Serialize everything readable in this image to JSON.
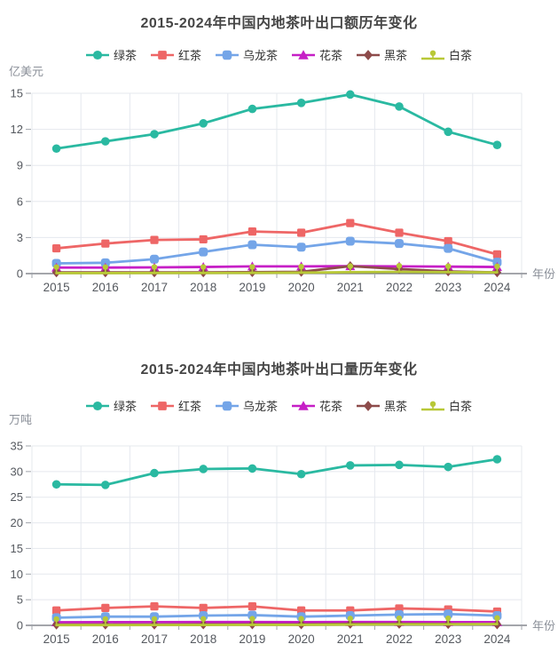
{
  "page": {
    "background": "#ffffff",
    "title_color": "#464646"
  },
  "style": {
    "grid_color": "#e5e8ee",
    "axis_line_color": "#6e7079",
    "tick_color": "#a0a4ab",
    "tick_label_color": "#55595f",
    "axis_name_color": "#8b9099",
    "legend_text_color": "#333333"
  },
  "chart_data": [
    {
      "type": "line",
      "title": "2015-2024年中国内地茶叶出口额历年变化",
      "y_name": "亿美元",
      "x_name": "年份",
      "categories": [
        "2015",
        "2016",
        "2017",
        "2018",
        "2019",
        "2020",
        "2021",
        "2022",
        "2023",
        "2024"
      ],
      "ylim": [
        0,
        15
      ],
      "ytick_step": 3,
      "grid": true,
      "legend_position": "top",
      "series": [
        {
          "key": "green-tea",
          "name": "绿茶",
          "color": "#2ab9a1",
          "symbol": "circle",
          "values": [
            10.4,
            11.0,
            11.6,
            12.5,
            13.7,
            14.2,
            14.9,
            13.9,
            11.8,
            10.7
          ]
        },
        {
          "key": "black-tea",
          "name": "红茶",
          "color": "#ee6666",
          "symbol": "rect",
          "values": [
            2.1,
            2.5,
            2.8,
            2.85,
            3.5,
            3.4,
            4.2,
            3.4,
            2.7,
            1.6
          ]
        },
        {
          "key": "oolong-tea",
          "name": "乌龙茶",
          "color": "#74a5e8",
          "symbol": "roundRect",
          "values": [
            0.85,
            0.9,
            1.2,
            1.8,
            2.4,
            2.2,
            2.7,
            2.5,
            2.1,
            0.95
          ]
        },
        {
          "key": "flower-tea",
          "name": "花茶",
          "color": "#c61fc6",
          "symbol": "triangle",
          "values": [
            0.5,
            0.5,
            0.52,
            0.55,
            0.6,
            0.6,
            0.62,
            0.6,
            0.58,
            0.55
          ]
        },
        {
          "key": "dark-tea",
          "name": "黑茶",
          "color": "#8d4b4a",
          "symbol": "diamond",
          "values": [
            0.1,
            0.1,
            0.1,
            0.1,
            0.12,
            0.15,
            0.62,
            0.38,
            0.18,
            0.1
          ]
        },
        {
          "key": "white-tea",
          "name": "白茶",
          "color": "#b8c837",
          "symbol": "pin",
          "values": [
            0.04,
            0.04,
            0.05,
            0.05,
            0.06,
            0.08,
            0.12,
            0.15,
            0.12,
            0.1
          ]
        }
      ]
    },
    {
      "type": "line",
      "title": "2015-2024年中国内地茶叶出口量历年变化",
      "y_name": "万吨",
      "x_name": "年份",
      "categories": [
        "2015",
        "2016",
        "2017",
        "2018",
        "2019",
        "2020",
        "2021",
        "2022",
        "2023",
        "2024"
      ],
      "ylim": [
        0,
        35
      ],
      "ytick_step": 5,
      "grid": true,
      "legend_position": "top",
      "series": [
        {
          "key": "green-tea",
          "name": "绿茶",
          "color": "#2ab9a1",
          "symbol": "circle",
          "values": [
            27.5,
            27.4,
            29.7,
            30.5,
            30.6,
            29.5,
            31.2,
            31.3,
            30.9,
            32.4
          ]
        },
        {
          "key": "black-tea",
          "name": "红茶",
          "color": "#ee6666",
          "symbol": "rect",
          "values": [
            2.9,
            3.4,
            3.7,
            3.4,
            3.7,
            2.9,
            2.9,
            3.3,
            3.1,
            2.7
          ]
        },
        {
          "key": "oolong-tea",
          "name": "乌龙茶",
          "color": "#74a5e8",
          "symbol": "roundRect",
          "values": [
            1.5,
            1.7,
            1.7,
            1.9,
            2.0,
            1.7,
            1.9,
            2.1,
            2.2,
            1.9
          ]
        },
        {
          "key": "flower-tea",
          "name": "花茶",
          "color": "#c61fc6",
          "symbol": "triangle",
          "values": [
            0.6,
            0.62,
            0.63,
            0.65,
            0.65,
            0.62,
            0.65,
            0.65,
            0.63,
            0.62
          ]
        },
        {
          "key": "dark-tea",
          "name": "黑茶",
          "color": "#8d4b4a",
          "symbol": "diamond",
          "values": [
            0.15,
            0.15,
            0.15,
            0.18,
            0.2,
            0.2,
            0.3,
            0.3,
            0.25,
            0.2
          ]
        },
        {
          "key": "white-tea",
          "name": "白茶",
          "color": "#b8c837",
          "symbol": "pin",
          "values": [
            0.05,
            0.05,
            0.06,
            0.08,
            0.1,
            0.1,
            0.15,
            0.2,
            0.2,
            0.25
          ]
        }
      ]
    }
  ]
}
